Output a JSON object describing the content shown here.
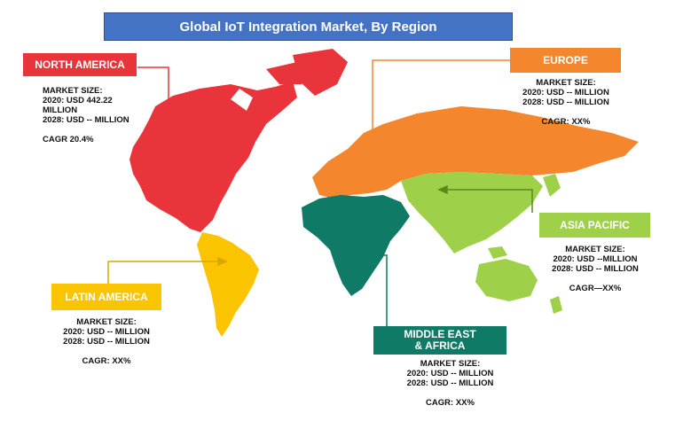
{
  "title": "Global IoT Integration Market, By Region",
  "colors": {
    "title_bg": "#4472c4",
    "north_america": "#e8343a",
    "europe": "#f4862e",
    "asia_pacific": "#9fd04a",
    "latin_america": "#fbc400",
    "middle_east_africa": "#0f7a66"
  },
  "regions": {
    "north_america": {
      "label": "NORTH AMERICA",
      "market_size_label": "MARKET SIZE:",
      "line_2020": "2020: USD 442.22",
      "line_2020_cont": "MILLION",
      "line_2028": "2028: USD -- MILLION",
      "cagr": "CAGR 20.4%"
    },
    "europe": {
      "label": "EUROPE",
      "market_size_label": "MARKET SIZE:",
      "line_2020": "2020: USD -- MILLION",
      "line_2028": "2028: USD -- MILLION",
      "cagr": "CAGR: XX%"
    },
    "asia_pacific": {
      "label": "ASIA PACIFIC",
      "market_size_label": "MARKET SIZE:",
      "line_2020": "2020: USD --MILLION",
      "line_2028": "2028: USD -- MILLION",
      "cagr": "CAGR—XX%"
    },
    "latin_america": {
      "label": "LATIN AMERICA",
      "market_size_label": "MARKET SIZE:",
      "line_2020": "2020: USD -- MILLION",
      "line_2028": "2028: USD -- MILLION",
      "cagr": "CAGR: XX%"
    },
    "middle_east_africa": {
      "label_line1": "MIDDLE EAST",
      "label_line2": "& AFRICA",
      "market_size_label": "MARKET SIZE:",
      "line_2020": "2020: USD -- MILLION",
      "line_2028": "2028: USD -- MILLION",
      "cagr": "CAGR: XX%"
    }
  }
}
